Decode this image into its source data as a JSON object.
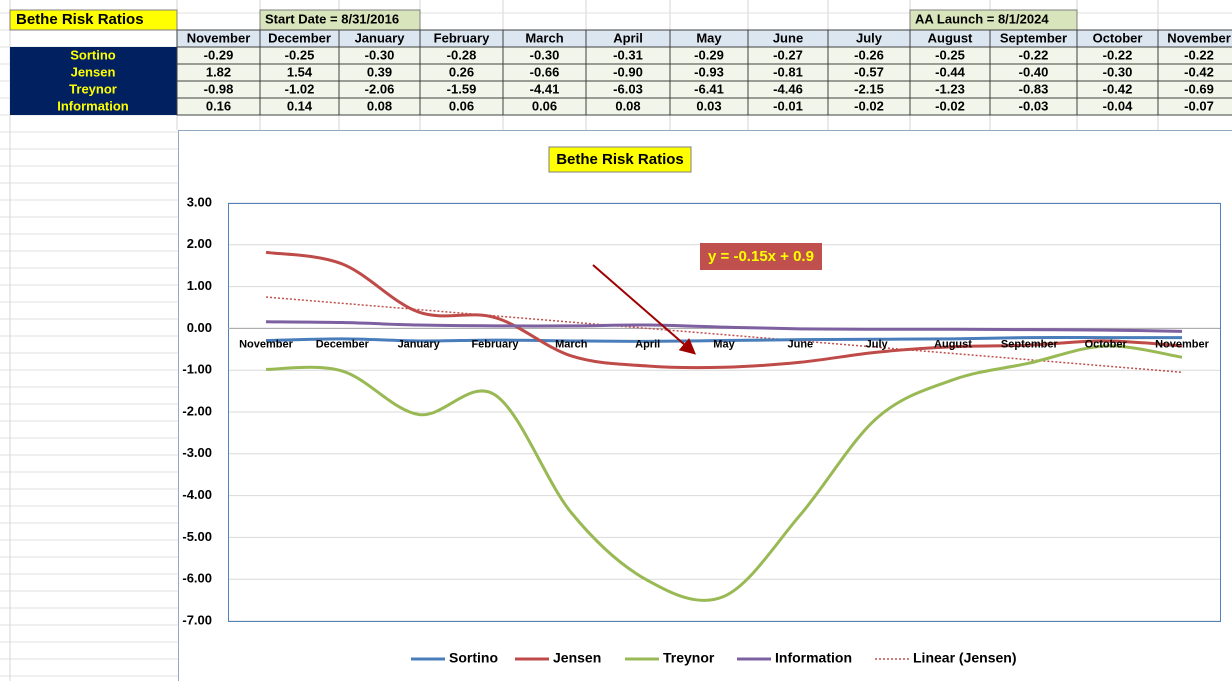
{
  "sheet": {
    "title": "Bethe Risk Ratios",
    "start_note": "Start Date = 8/31/2016",
    "launch_note": "AA Launch = 8/1/2024"
  },
  "chart_data": {
    "type": "line",
    "title": "Bethe Risk Ratios",
    "categories": [
      "November",
      "December",
      "January",
      "February",
      "March",
      "April",
      "May",
      "June",
      "July",
      "August",
      "September",
      "October",
      "November"
    ],
    "series": [
      {
        "name": "Sortino",
        "color": "#4a7ebb",
        "values": [
          -0.29,
          -0.25,
          -0.3,
          -0.28,
          -0.3,
          -0.31,
          -0.29,
          -0.27,
          -0.26,
          -0.25,
          -0.22,
          -0.22,
          -0.22
        ],
        "value_labels": [
          "-0.29",
          "-0.25",
          "-0.30",
          "-0.28",
          "-0.30",
          "-0.31",
          "-0.29",
          "-0.27",
          "-0.26",
          "-0.25",
          "-0.22",
          "-0.22",
          "-0.22"
        ]
      },
      {
        "name": "Jensen",
        "color": "#be4b48",
        "values": [
          1.82,
          1.54,
          0.39,
          0.26,
          -0.66,
          -0.9,
          -0.93,
          -0.81,
          -0.57,
          -0.44,
          -0.4,
          -0.3,
          -0.42
        ],
        "value_labels": [
          "1.82",
          "1.54",
          "0.39",
          "0.26",
          "-0.66",
          "-0.90",
          "-0.93",
          "-0.81",
          "-0.57",
          "-0.44",
          "-0.40",
          "-0.30",
          "-0.42"
        ]
      },
      {
        "name": "Treynor",
        "color": "#98b954",
        "values": [
          -0.98,
          -1.02,
          -2.06,
          -1.59,
          -4.41,
          -6.03,
          -6.41,
          -4.46,
          -2.15,
          -1.23,
          -0.83,
          -0.42,
          -0.69
        ],
        "value_labels": [
          "-0.98",
          "-1.02",
          "-2.06",
          "-1.59",
          "-4.41",
          "-6.03",
          "-6.41",
          "-4.46",
          "-2.15",
          "-1.23",
          "-0.83",
          "-0.42",
          "-0.69"
        ]
      },
      {
        "name": "Information",
        "color": "#7d60a0",
        "values": [
          0.16,
          0.14,
          0.08,
          0.06,
          0.06,
          0.08,
          0.03,
          -0.01,
          -0.02,
          -0.02,
          -0.03,
          -0.04,
          -0.07
        ],
        "value_labels": [
          "0.16",
          "0.14",
          "0.08",
          "0.06",
          "0.06",
          "0.08",
          "0.03",
          "-0.01",
          "-0.02",
          "-0.02",
          "-0.03",
          "-0.04",
          "-0.07"
        ]
      }
    ],
    "trendline": {
      "name": "Linear (Jensen)",
      "color": "#c0504d",
      "slope": -0.15,
      "intercept": 0.9,
      "equation": "y = -0.15x + 0.9"
    },
    "ylim": [
      -7,
      3
    ],
    "yticks": [
      {
        "value": -7,
        "label": "-7.00"
      },
      {
        "value": -6,
        "label": "-6.00"
      },
      {
        "value": -5,
        "label": "-5.00"
      },
      {
        "value": -4,
        "label": "-4.00"
      },
      {
        "value": -3,
        "label": "-3.00"
      },
      {
        "value": -2,
        "label": "-2.00"
      },
      {
        "value": -1,
        "label": "-1.00"
      },
      {
        "value": 0,
        "label": "0.00"
      },
      {
        "value": 1,
        "label": "1.00"
      },
      {
        "value": 2,
        "label": "2.00"
      },
      {
        "value": 3,
        "label": "3.00"
      }
    ],
    "grid": true,
    "legend": "bottom"
  }
}
